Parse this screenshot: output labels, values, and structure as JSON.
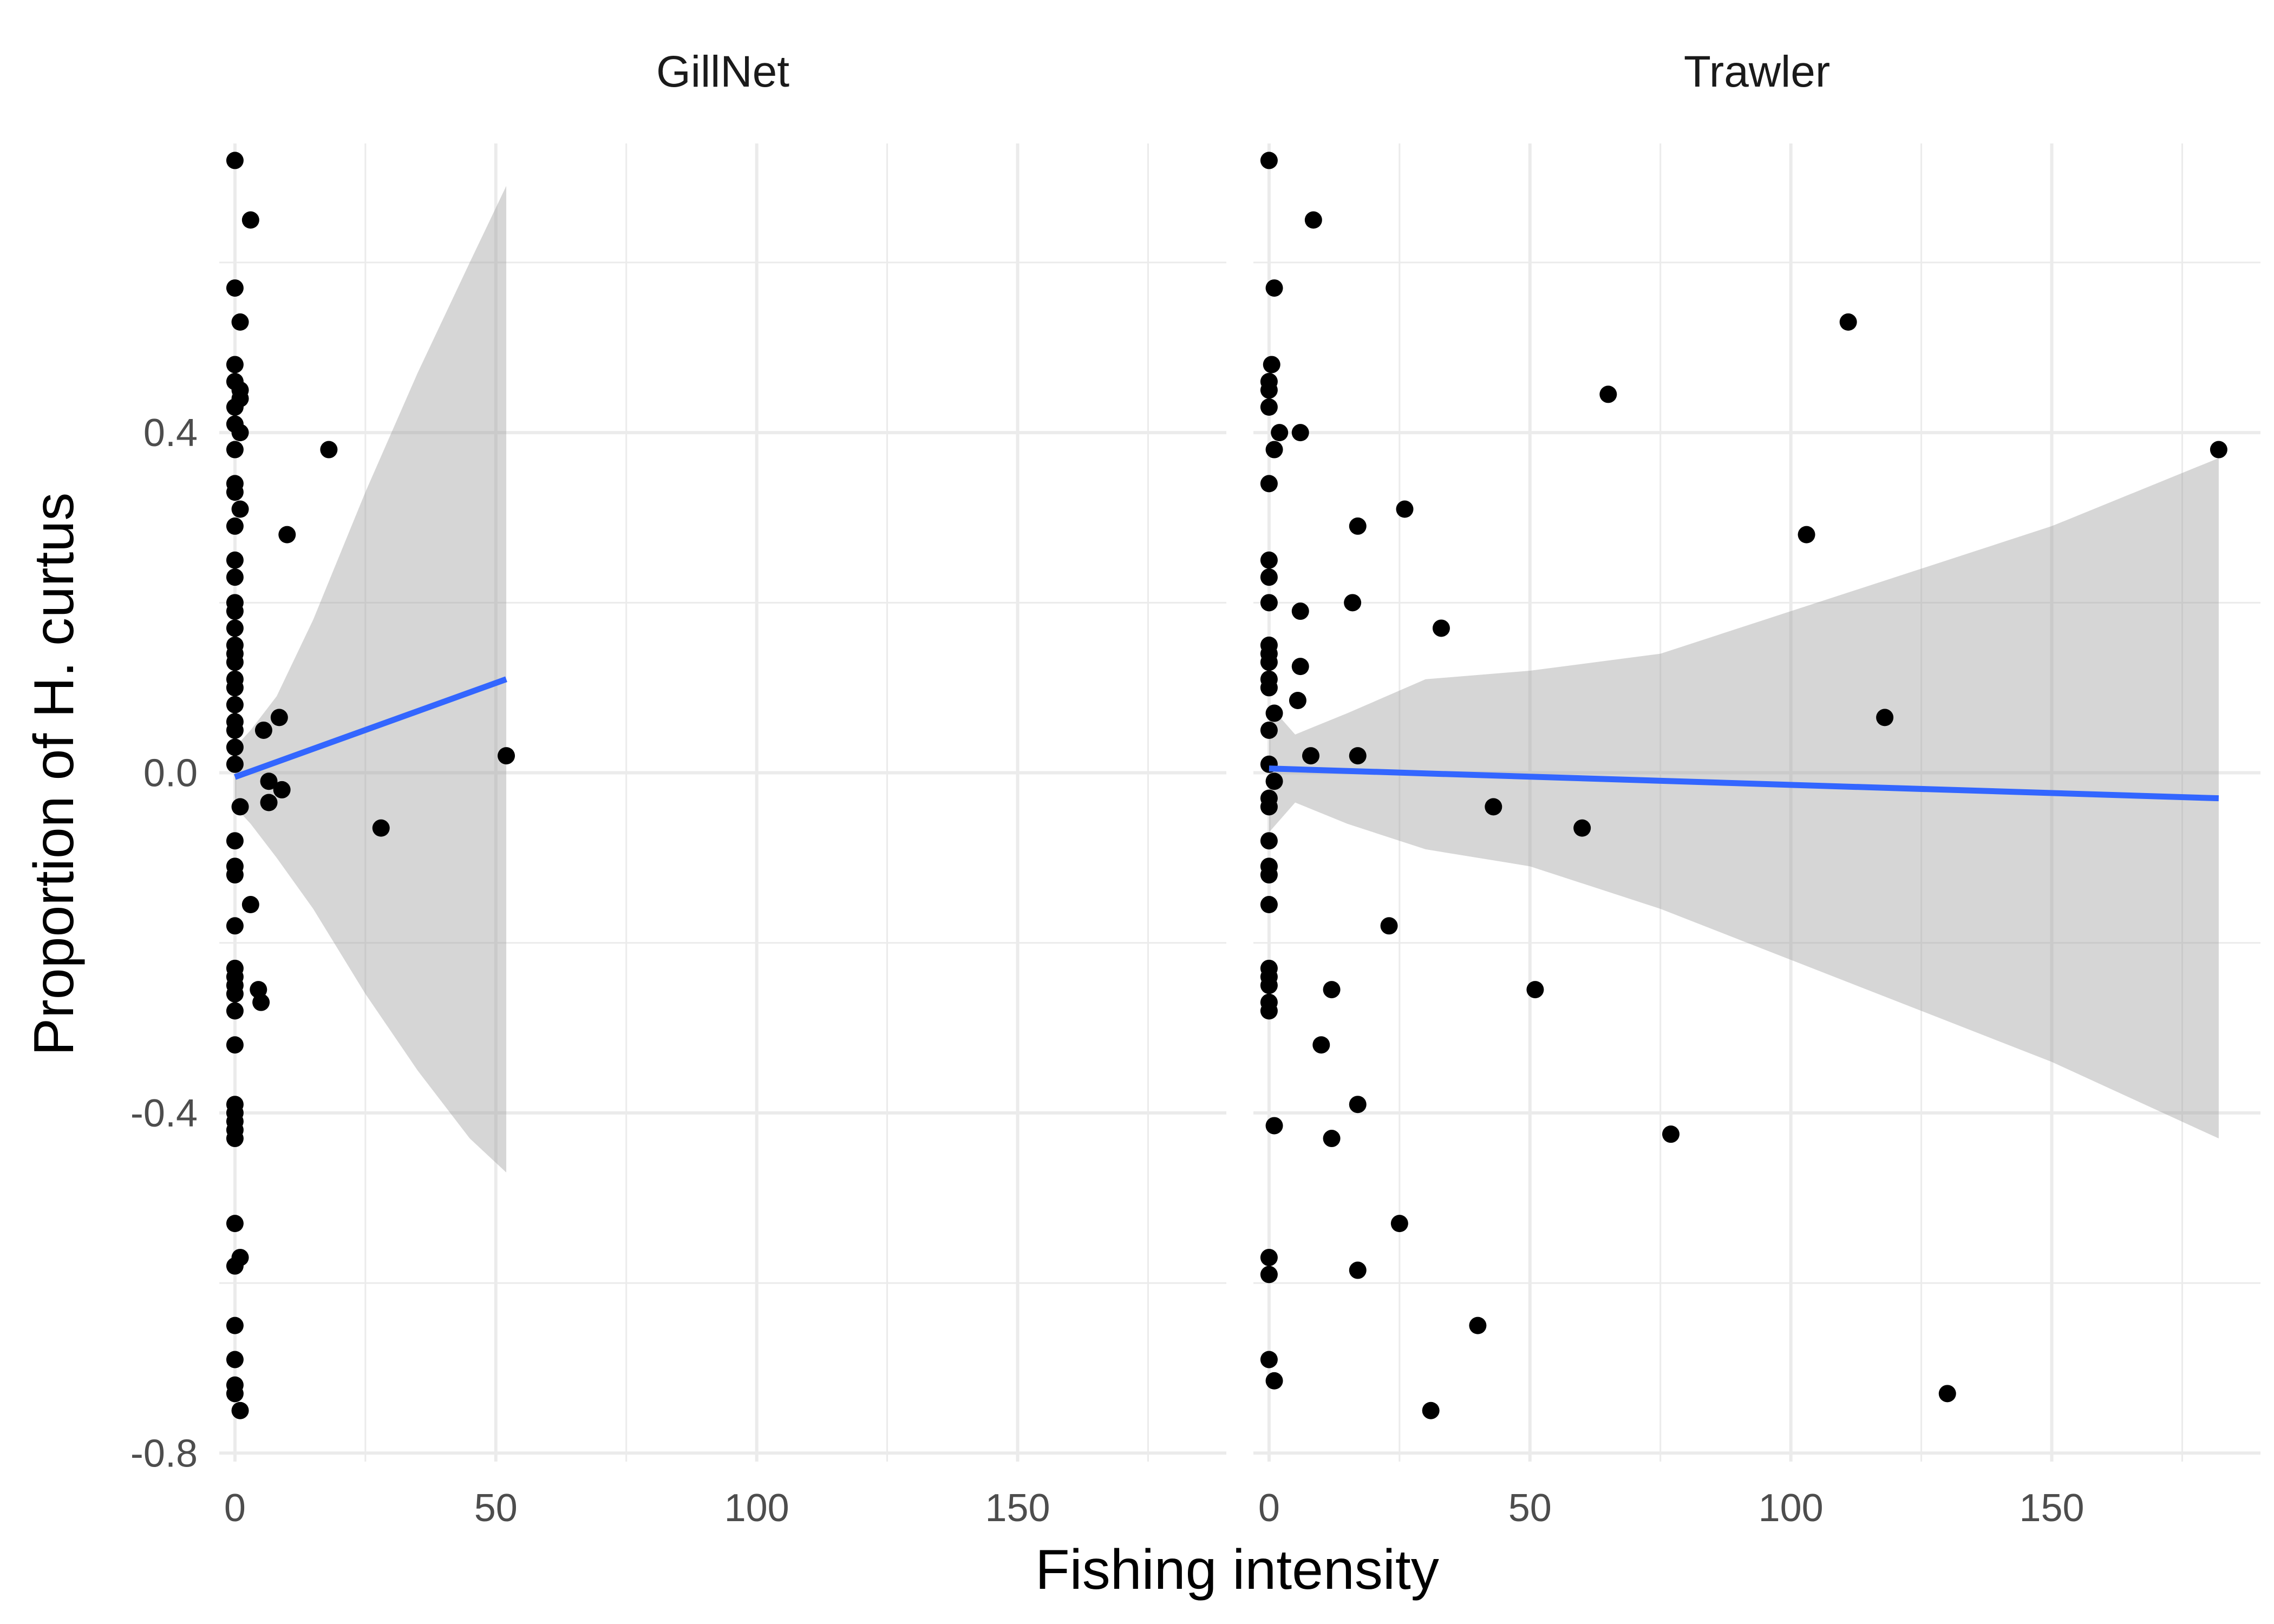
{
  "chart_data": {
    "type": "scatter",
    "xlabel": "Fishing intensity",
    "ylabel": "Proportion of H. curtus",
    "xlim": [
      -3,
      190
    ],
    "ylim": [
      -0.81,
      0.74
    ],
    "x_ticks": [
      0,
      50,
      100,
      150
    ],
    "x_tick_labels": [
      "0",
      "50",
      "100",
      "150"
    ],
    "y_ticks": [
      -0.8,
      -0.4,
      0.0,
      0.4
    ],
    "y_tick_labels": [
      "-0.8",
      "-0.4",
      "0.0",
      "0.4"
    ],
    "grid": true,
    "fit_color": "#3366FF",
    "band_color": "#999999",
    "point_color": "#000000",
    "panels": [
      {
        "name": "GillNet",
        "points": [
          [
            0,
            0.72
          ],
          [
            3,
            0.65
          ],
          [
            0,
            0.57
          ],
          [
            1,
            0.53
          ],
          [
            0,
            0.48
          ],
          [
            0,
            0.46
          ],
          [
            1,
            0.45
          ],
          [
            1,
            0.44
          ],
          [
            0,
            0.43
          ],
          [
            1,
            0.4
          ],
          [
            0,
            0.41
          ],
          [
            0,
            0.38
          ],
          [
            18,
            0.38
          ],
          [
            0,
            0.34
          ],
          [
            0,
            0.33
          ],
          [
            1,
            0.31
          ],
          [
            0,
            0.29
          ],
          [
            10,
            0.28
          ],
          [
            0,
            0.25
          ],
          [
            0,
            0.23
          ],
          [
            0,
            0.2
          ],
          [
            0,
            0.19
          ],
          [
            0,
            0.17
          ],
          [
            0,
            0.15
          ],
          [
            0,
            0.14
          ],
          [
            0,
            0.13
          ],
          [
            0,
            0.11
          ],
          [
            0,
            0.1
          ],
          [
            0,
            0.08
          ],
          [
            0,
            0.06
          ],
          [
            0,
            0.05
          ],
          [
            0,
            0.03
          ],
          [
            0,
            0.01
          ],
          [
            8.5,
            0.065
          ],
          [
            5.5,
            0.05
          ],
          [
            52,
            0.02
          ],
          [
            1,
            -0.04
          ],
          [
            6.5,
            -0.01
          ],
          [
            9,
            -0.02
          ],
          [
            6.5,
            -0.035
          ],
          [
            28,
            -0.065
          ],
          [
            0,
            -0.08
          ],
          [
            0,
            -0.11
          ],
          [
            0,
            -0.12
          ],
          [
            3,
            -0.155
          ],
          [
            0,
            -0.18
          ],
          [
            0,
            -0.23
          ],
          [
            0,
            -0.24
          ],
          [
            0,
            -0.25
          ],
          [
            0,
            -0.26
          ],
          [
            4.5,
            -0.255
          ],
          [
            5,
            -0.27
          ],
          [
            0,
            -0.28
          ],
          [
            0,
            -0.32
          ],
          [
            0,
            -0.39
          ],
          [
            0,
            -0.4
          ],
          [
            0,
            -0.41
          ],
          [
            0,
            -0.42
          ],
          [
            0,
            -0.43
          ],
          [
            0,
            -0.53
          ],
          [
            0,
            -0.58
          ],
          [
            1,
            -0.57
          ],
          [
            0,
            -0.65
          ],
          [
            0,
            -0.69
          ],
          [
            0,
            -0.72
          ],
          [
            0,
            -0.73
          ],
          [
            1,
            -0.75
          ]
        ],
        "fit": {
          "x": [
            0,
            52
          ],
          "y": [
            -0.005,
            0.11
          ]
        },
        "band": {
          "x": [
            0,
            3,
            8,
            15,
            25,
            35,
            45,
            52
          ],
          "lower": [
            -0.04,
            -0.06,
            -0.1,
            -0.16,
            -0.26,
            -0.35,
            -0.43,
            -0.47
          ],
          "upper": [
            0.03,
            0.05,
            0.09,
            0.18,
            0.33,
            0.47,
            0.6,
            0.69
          ]
        }
      },
      {
        "name": "Trawler",
        "points": [
          [
            0,
            0.72
          ],
          [
            8.5,
            0.65
          ],
          [
            1,
            0.57
          ],
          [
            111,
            0.53
          ],
          [
            0.5,
            0.48
          ],
          [
            0,
            0.46
          ],
          [
            0,
            0.45
          ],
          [
            65,
            0.445
          ],
          [
            0,
            0.43
          ],
          [
            2,
            0.4
          ],
          [
            6,
            0.4
          ],
          [
            1,
            0.38
          ],
          [
            182,
            0.38
          ],
          [
            0,
            0.34
          ],
          [
            26,
            0.31
          ],
          [
            17,
            0.29
          ],
          [
            103,
            0.28
          ],
          [
            0,
            0.25
          ],
          [
            0,
            0.23
          ],
          [
            16,
            0.2
          ],
          [
            0,
            0.2
          ],
          [
            6,
            0.19
          ],
          [
            33,
            0.17
          ],
          [
            0,
            0.15
          ],
          [
            0,
            0.14
          ],
          [
            0,
            0.13
          ],
          [
            6,
            0.125
          ],
          [
            0,
            0.11
          ],
          [
            0,
            0.1
          ],
          [
            5.5,
            0.085
          ],
          [
            1,
            0.07
          ],
          [
            118,
            0.065
          ],
          [
            0,
            0.05
          ],
          [
            8,
            0.02
          ],
          [
            17,
            0.02
          ],
          [
            0,
            0.01
          ],
          [
            1,
            -0.01
          ],
          [
            0,
            -0.03
          ],
          [
            0,
            -0.04
          ],
          [
            43,
            -0.04
          ],
          [
            60,
            -0.065
          ],
          [
            0,
            -0.08
          ],
          [
            0,
            -0.11
          ],
          [
            0,
            -0.12
          ],
          [
            0,
            -0.155
          ],
          [
            23,
            -0.18
          ],
          [
            0,
            -0.23
          ],
          [
            0,
            -0.24
          ],
          [
            0,
            -0.25
          ],
          [
            12,
            -0.255
          ],
          [
            51,
            -0.255
          ],
          [
            0,
            -0.27
          ],
          [
            0,
            -0.28
          ],
          [
            10,
            -0.32
          ],
          [
            17,
            -0.39
          ],
          [
            1,
            -0.415
          ],
          [
            77,
            -0.425
          ],
          [
            12,
            -0.43
          ],
          [
            25,
            -0.53
          ],
          [
            0,
            -0.57
          ],
          [
            0,
            -0.59
          ],
          [
            17,
            -0.585
          ],
          [
            40,
            -0.65
          ],
          [
            0,
            -0.69
          ],
          [
            1,
            -0.715
          ],
          [
            130,
            -0.73
          ],
          [
            31,
            -0.75
          ]
        ],
        "fit": {
          "x": [
            0,
            182
          ],
          "y": [
            0.005,
            -0.03
          ]
        },
        "band": {
          "x": [
            0,
            5,
            15,
            30,
            50,
            75,
            100,
            125,
            150,
            182
          ],
          "lower": [
            -0.07,
            -0.035,
            -0.06,
            -0.09,
            -0.11,
            -0.16,
            -0.22,
            -0.28,
            -0.34,
            -0.43
          ],
          "upper": [
            0.08,
            0.045,
            0.07,
            0.11,
            0.12,
            0.14,
            0.19,
            0.24,
            0.29,
            0.37
          ]
        }
      }
    ]
  }
}
